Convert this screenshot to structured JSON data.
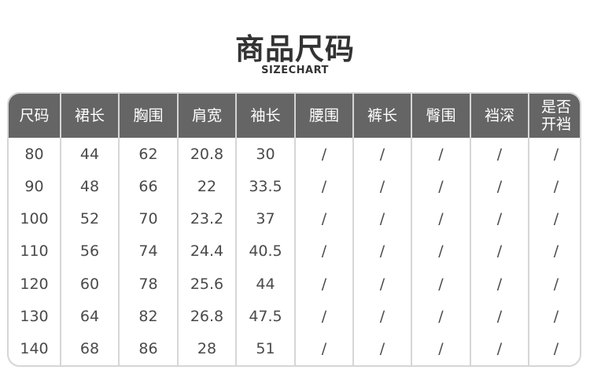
{
  "title": "商品尺码",
  "subtitle": "SIZECHART",
  "colors": {
    "header_bg": "#656565",
    "border": "#d6d6d6",
    "text": "#4a4a4a"
  },
  "table": {
    "headers": [
      "尺码",
      "裙长",
      "胸围",
      "肩宽",
      "袖长",
      "腰围",
      "裤长",
      "臀围",
      "裆深",
      "是否\n开裆"
    ],
    "rows": [
      [
        "80",
        "44",
        "62",
        "20.8",
        "30",
        "/",
        "/",
        "/",
        "/",
        "/"
      ],
      [
        "90",
        "48",
        "66",
        "22",
        "33.5",
        "/",
        "/",
        "/",
        "/",
        "/"
      ],
      [
        "100",
        "52",
        "70",
        "23.2",
        "37",
        "/",
        "/",
        "/",
        "/",
        "/"
      ],
      [
        "110",
        "56",
        "74",
        "24.4",
        "40.5",
        "/",
        "/",
        "/",
        "/",
        "/"
      ],
      [
        "120",
        "60",
        "78",
        "25.6",
        "44",
        "/",
        "/",
        "/",
        "/",
        "/"
      ],
      [
        "130",
        "64",
        "82",
        "26.8",
        "47.5",
        "/",
        "/",
        "/",
        "/",
        "/"
      ],
      [
        "140",
        "68",
        "86",
        "28",
        "51",
        "/",
        "/",
        "/",
        "/",
        "/"
      ]
    ]
  }
}
